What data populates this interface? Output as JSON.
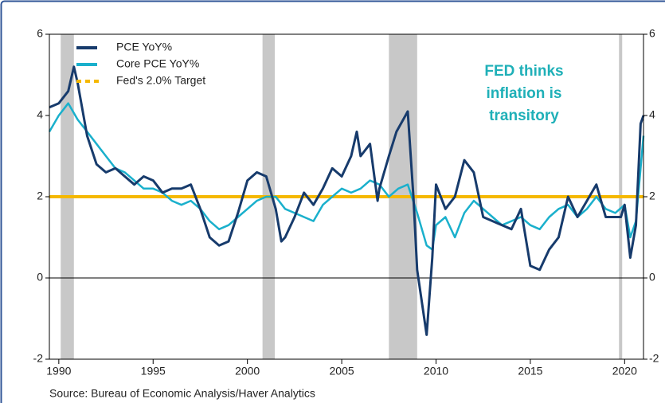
{
  "chart_data": {
    "type": "line",
    "source": "Source:  Bureau of Economic Analysis/Haver Analytics",
    "annotation": [
      "FED thinks",
      "inflation is",
      "transitory"
    ],
    "xlim": [
      1989.5,
      2021.0
    ],
    "xticks": [
      1990,
      1995,
      2000,
      2005,
      2010,
      2015,
      2020
    ],
    "ylim": [
      -2,
      6
    ],
    "yticks": [
      -2,
      0,
      2,
      4,
      6
    ],
    "y2lim": [
      -2,
      6
    ],
    "y2ticks": [
      -2,
      0,
      2,
      4,
      6
    ],
    "grid": false,
    "legend": "upper left",
    "shaded_periods": [
      [
        1990.1,
        1990.8
      ],
      [
        2000.8,
        2001.45
      ],
      [
        2007.5,
        2009.0
      ],
      [
        2019.7,
        2019.87
      ]
    ],
    "shade_color": "#c8c8c8",
    "target": {
      "name": "Fed's 2.0% Target",
      "value": 2,
      "color": "#f5b800"
    },
    "series": [
      {
        "name": "PCE YoY%",
        "color": "#173b6c",
        "x": [
          1989.5,
          1990.0,
          1990.5,
          1990.8,
          1991.0,
          1991.5,
          1992.0,
          1992.5,
          1993.0,
          1993.5,
          1994.0,
          1994.5,
          1995.0,
          1995.5,
          1996.0,
          1996.5,
          1997.0,
          1997.5,
          1998.0,
          1998.5,
          1999.0,
          1999.5,
          2000.0,
          2000.5,
          2001.0,
          2001.5,
          2001.8,
          2002.0,
          2002.5,
          2003.0,
          2003.5,
          2004.0,
          2004.5,
          2005.0,
          2005.5,
          2005.8,
          2006.0,
          2006.5,
          2006.9,
          2007.0,
          2007.5,
          2007.9,
          2008.5,
          2008.8,
          2009.0,
          2009.5,
          2009.8,
          2010.0,
          2010.5,
          2011.0,
          2011.5,
          2012.0,
          2012.5,
          2013.0,
          2013.5,
          2014.0,
          2014.5,
          2015.0,
          2015.5,
          2016.0,
          2016.5,
          2017.0,
          2017.5,
          2018.0,
          2018.5,
          2019.0,
          2019.5,
          2019.8,
          2020.0,
          2020.3,
          2020.6,
          2020.85,
          2021.0
        ],
        "values": [
          4.2,
          4.3,
          4.6,
          5.2,
          4.8,
          3.5,
          2.8,
          2.6,
          2.7,
          2.5,
          2.3,
          2.5,
          2.4,
          2.1,
          2.2,
          2.2,
          2.3,
          1.7,
          1.0,
          0.8,
          0.9,
          1.6,
          2.4,
          2.6,
          2.5,
          1.7,
          0.9,
          1.0,
          1.5,
          2.1,
          1.8,
          2.2,
          2.7,
          2.5,
          3.0,
          3.6,
          3.0,
          3.3,
          1.9,
          2.2,
          3.0,
          3.6,
          4.1,
          2.0,
          0.2,
          -1.4,
          0.5,
          2.3,
          1.7,
          2.0,
          2.9,
          2.6,
          1.5,
          1.4,
          1.3,
          1.2,
          1.7,
          0.3,
          0.2,
          0.7,
          1.0,
          2.0,
          1.5,
          1.9,
          2.3,
          1.5,
          1.5,
          1.5,
          1.8,
          0.5,
          1.3,
          3.8,
          4.0
        ]
      },
      {
        "name": "Core PCE YoY%",
        "color": "#1ab0cc",
        "x": [
          1989.5,
          1990.0,
          1990.5,
          1991.0,
          1991.5,
          1992.0,
          1992.5,
          1993.0,
          1993.5,
          1994.0,
          1994.5,
          1995.0,
          1995.5,
          1996.0,
          1996.5,
          1997.0,
          1997.5,
          1998.0,
          1998.5,
          1999.0,
          1999.5,
          2000.0,
          2000.5,
          2001.0,
          2001.5,
          2002.0,
          2002.5,
          2003.0,
          2003.5,
          2004.0,
          2004.5,
          2005.0,
          2005.5,
          2006.0,
          2006.5,
          2007.0,
          2007.5,
          2008.0,
          2008.5,
          2009.0,
          2009.5,
          2009.8,
          2010.0,
          2010.5,
          2011.0,
          2011.5,
          2012.0,
          2012.5,
          2013.0,
          2013.5,
          2014.0,
          2014.5,
          2015.0,
          2015.5,
          2016.0,
          2016.5,
          2017.0,
          2017.5,
          2018.0,
          2018.5,
          2019.0,
          2019.5,
          2020.0,
          2020.3,
          2020.6,
          2021.0
        ],
        "values": [
          3.6,
          4.0,
          4.3,
          3.9,
          3.6,
          3.3,
          3.0,
          2.7,
          2.6,
          2.4,
          2.2,
          2.2,
          2.1,
          1.9,
          1.8,
          1.9,
          1.7,
          1.4,
          1.2,
          1.3,
          1.5,
          1.7,
          1.9,
          2.0,
          2.0,
          1.7,
          1.6,
          1.5,
          1.4,
          1.8,
          2.0,
          2.2,
          2.1,
          2.2,
          2.4,
          2.3,
          2.0,
          2.2,
          2.3,
          1.6,
          0.8,
          0.7,
          1.3,
          1.5,
          1.0,
          1.6,
          1.9,
          1.7,
          1.5,
          1.3,
          1.4,
          1.5,
          1.3,
          1.2,
          1.5,
          1.7,
          1.8,
          1.5,
          1.7,
          2.0,
          1.7,
          1.6,
          1.8,
          1.0,
          1.4,
          3.5
        ]
      }
    ]
  }
}
